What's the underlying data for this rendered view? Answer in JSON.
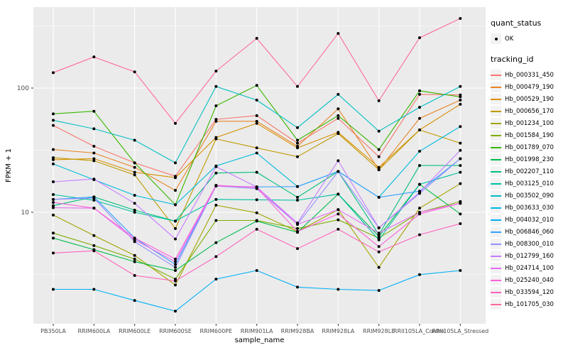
{
  "figure": {
    "x_axis_title": "sample_name",
    "y_axis_title": "FPKM + 1"
  },
  "legend": {
    "quant_status_title": "quant_status",
    "ok_label": "OK",
    "tracking_id_title": "tracking_id"
  },
  "chart_data": {
    "type": "line",
    "x_type": "categorical",
    "title": "",
    "xlabel": "sample_name",
    "ylabel": "FPKM + 1",
    "y_scale": "log10",
    "ylim": [
      1.27,
      448
    ],
    "y_ticks": [
      100,
      10
    ],
    "y_minor_gridlines": [
      3.162,
      31.62,
      316.2
    ],
    "grid": true,
    "legend_position": "right",
    "panel_bg": "#EBEBEB",
    "grid_color": "#FFFFFF",
    "point_color": "#000000",
    "tick_label_color": "#4D4D4D",
    "panel": {
      "l": 47,
      "t": 10,
      "r": 684,
      "b": 456
    },
    "x0": 75,
    "dx": 57.33,
    "y100": 124,
    "decade": 175,
    "categories": [
      "PB350LA",
      "RRIM600LA",
      "RRIM600LE",
      "RRIM600SE",
      "RRIM600PE",
      "RRIM901LA",
      "RRIM928BA",
      "RRIM928LA",
      "RRIM928LE",
      "RRII105LA_Control",
      "RRII105LA_Stressed"
    ],
    "quant_status": "OK",
    "series": [
      {
        "name": "Hb_000331_450",
        "color": "#F8766D",
        "values": [
          50,
          34,
          25,
          19.5,
          56,
          60,
          36,
          57,
          28,
          89,
          88
        ]
      },
      {
        "name": "Hb_000479_190",
        "color": "#E88526",
        "values": [
          32,
          30,
          23,
          15,
          54,
          54,
          34,
          68,
          22,
          57,
          80
        ]
      },
      {
        "name": "Hb_000529_190",
        "color": "#D89000",
        "values": [
          26.5,
          27,
          21,
          19,
          40,
          52,
          33,
          44,
          23,
          46,
          74
        ]
      },
      {
        "name": "Hb_000656_170",
        "color": "#C09B00",
        "values": [
          27.5,
          26,
          20,
          7.4,
          39,
          33,
          28,
          43,
          22,
          46,
          36
        ]
      },
      {
        "name": "Hb_001234_100",
        "color": "#A3A500",
        "values": [
          9.5,
          6.5,
          4.5,
          2.6,
          11.4,
          9.9,
          7,
          10.5,
          3.6,
          10.8,
          17
        ]
      },
      {
        "name": "Hb_001584_190",
        "color": "#7CAE00",
        "values": [
          6.8,
          5.4,
          4.2,
          2.9,
          8.6,
          8.6,
          7.4,
          8.7,
          6.2,
          10,
          12.2
        ]
      },
      {
        "name": "Hb_001789_070",
        "color": "#39B600",
        "values": [
          62,
          65,
          25,
          11.5,
          72,
          105,
          38,
          60,
          32,
          95,
          85
        ]
      },
      {
        "name": "Hb_001998_230",
        "color": "#00BB4E",
        "values": [
          6.2,
          5,
          4,
          3.4,
          5.7,
          8.5,
          6.9,
          14,
          6.4,
          16.8,
          9.7
        ]
      },
      {
        "name": "Hb_002207_110",
        "color": "#00BF7D",
        "values": [
          11.3,
          13.3,
          10.4,
          8.5,
          20.7,
          21,
          13.2,
          21.3,
          6.6,
          23.8,
          23.8
        ]
      },
      {
        "name": "Hb_003125_010",
        "color": "#00C1A3",
        "values": [
          13.9,
          12.5,
          10,
          8.5,
          12.7,
          12.6,
          12.5,
          14,
          6,
          16.8,
          21
        ]
      },
      {
        "name": "Hb_003502_090",
        "color": "#00BFC4",
        "values": [
          55,
          47,
          38,
          25,
          103,
          80,
          48,
          89,
          45,
          70,
          103
        ]
      },
      {
        "name": "Hb_003633_030",
        "color": "#00BADE",
        "values": [
          24.5,
          18.3,
          13.7,
          11.5,
          23.6,
          30,
          16.1,
          21.3,
          13.2,
          31,
          49
        ]
      },
      {
        "name": "Hb_004032_010",
        "color": "#00B0F6",
        "values": [
          2.4,
          2.4,
          1.95,
          1.6,
          2.9,
          3.4,
          2.5,
          2.4,
          2.35,
          3.15,
          3.4
        ]
      },
      {
        "name": "Hb_006846_060",
        "color": "#35A2FF",
        "values": [
          12.7,
          13.3,
          6.2,
          3.8,
          16.3,
          16,
          16.1,
          21.3,
          13.2,
          14.8,
          27
        ]
      },
      {
        "name": "Hb_008300_010",
        "color": "#9590FF",
        "values": [
          12.7,
          13,
          5.8,
          3.6,
          16.3,
          15.5,
          8,
          21.3,
          7.5,
          14.2,
          27
        ]
      },
      {
        "name": "Hb_012799_160",
        "color": "#C77CFF",
        "values": [
          17.6,
          18.5,
          11.8,
          6.1,
          23.3,
          16,
          8.2,
          26,
          7.5,
          14.5,
          31.5
        ]
      },
      {
        "name": "Hb_024714_100",
        "color": "#E76BF3",
        "values": [
          10.9,
          10.8,
          6,
          4,
          16.3,
          16,
          8,
          10.5,
          6.8,
          10,
          11.8
        ]
      },
      {
        "name": "Hb_025240_040",
        "color": "#FA62DB",
        "values": [
          12,
          10.8,
          6.2,
          4.2,
          16.5,
          15.8,
          7,
          9.7,
          5.3,
          9.7,
          11.8
        ]
      },
      {
        "name": "Hb_033594_120",
        "color": "#FF62BC",
        "values": [
          4.7,
          4.9,
          3.1,
          2.8,
          4.4,
          7.3,
          5.1,
          7.3,
          4.8,
          6.6,
          8.1
        ]
      },
      {
        "name": "Hb_101705_030",
        "color": "#FF6A98",
        "values": [
          133,
          178,
          135,
          52,
          137,
          251,
          103,
          275,
          79,
          254,
          363
        ]
      }
    ]
  }
}
